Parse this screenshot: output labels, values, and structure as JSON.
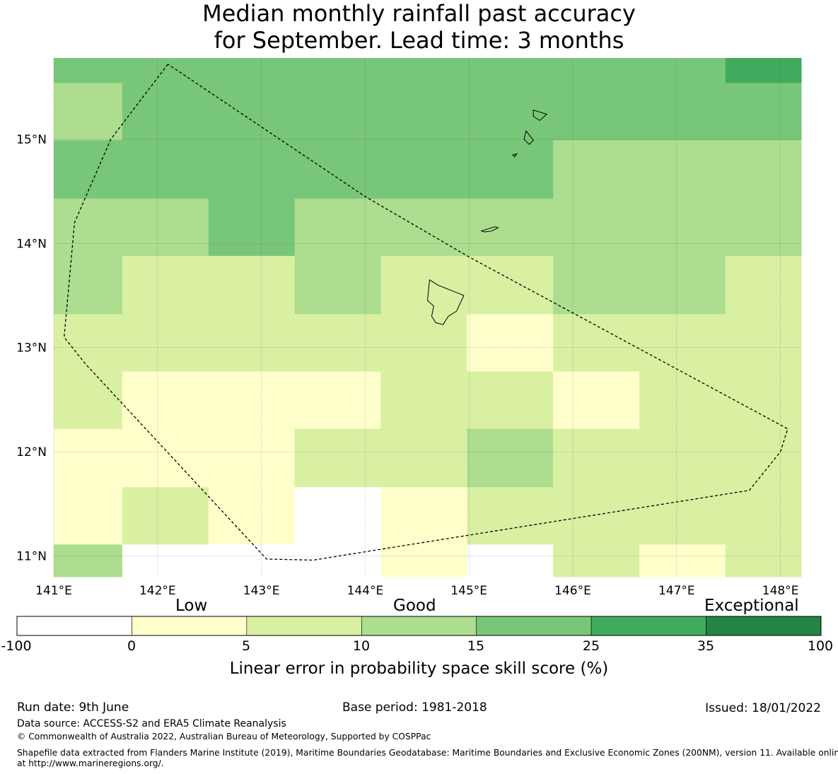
{
  "title": {
    "line1": "Median monthly rainfall past accuracy",
    "line2": "for September. Lead time: 3 months"
  },
  "map": {
    "lon_range": [
      141.0,
      148.2
    ],
    "lat_range": [
      10.8,
      15.78
    ],
    "x_ticks": [
      "141°E",
      "142°E",
      "143°E",
      "144°E",
      "145°E",
      "146°E",
      "147°E",
      "148°E"
    ],
    "x_tick_values": [
      141,
      142,
      143,
      144,
      145,
      146,
      147,
      148
    ],
    "y_ticks": [
      "15°N",
      "14°N",
      "13°N",
      "12°N",
      "11°N"
    ],
    "y_tick_values": [
      15,
      14,
      13,
      12,
      11
    ],
    "cell_lon_edges": [
      141.0,
      141.66,
      142.49,
      143.32,
      144.15,
      144.98,
      145.81,
      146.64,
      147.47,
      148.2
    ],
    "cell_lat_edges": [
      15.78,
      15.54,
      14.99,
      14.43,
      13.88,
      13.32,
      12.77,
      12.22,
      11.66,
      11.11,
      10.8
    ],
    "skill_classes": [
      [
        4,
        4,
        4,
        4,
        4,
        4,
        4,
        4,
        5
      ],
      [
        3,
        4,
        4,
        4,
        4,
        4,
        4,
        4,
        4
      ],
      [
        4,
        4,
        4,
        4,
        4,
        4,
        3,
        3,
        3
      ],
      [
        3,
        3,
        4,
        3,
        3,
        3,
        3,
        3,
        3
      ],
      [
        3,
        2,
        2,
        3,
        2,
        2,
        3,
        3,
        2
      ],
      [
        2,
        2,
        2,
        2,
        2,
        1,
        2,
        2,
        2
      ],
      [
        2,
        1,
        1,
        1,
        2,
        2,
        1,
        2,
        2
      ],
      [
        1,
        1,
        1,
        2,
        2,
        3,
        2,
        2,
        2
      ],
      [
        1,
        2,
        1,
        0,
        1,
        2,
        2,
        2,
        2
      ],
      [
        3,
        0,
        0,
        0,
        1,
        0,
        2,
        1,
        2
      ]
    ],
    "boundary_label": "dashed boundary",
    "boundary": [
      [
        142.1,
        15.72
      ],
      [
        141.55,
        15.0
      ],
      [
        141.2,
        14.2
      ],
      [
        141.1,
        13.1
      ],
      [
        141.3,
        12.85
      ],
      [
        143.05,
        10.97
      ],
      [
        143.5,
        10.96
      ],
      [
        145.5,
        11.28
      ],
      [
        147.7,
        11.63
      ],
      [
        148.0,
        12.0
      ],
      [
        148.07,
        12.22
      ],
      [
        145.0,
        13.87
      ],
      [
        144.0,
        14.45
      ],
      [
        142.1,
        15.72
      ]
    ],
    "islands": [
      [
        [
          144.62,
          13.65
        ],
        [
          144.7,
          13.6
        ],
        [
          144.95,
          13.5
        ],
        [
          144.88,
          13.35
        ],
        [
          144.8,
          13.3
        ],
        [
          144.75,
          13.22
        ],
        [
          144.68,
          13.24
        ],
        [
          144.64,
          13.3
        ],
        [
          144.66,
          13.4
        ],
        [
          144.6,
          13.45
        ],
        [
          144.62,
          13.65
        ]
      ],
      [
        [
          145.12,
          14.12
        ],
        [
          145.25,
          14.16
        ],
        [
          145.28,
          14.15
        ],
        [
          145.22,
          14.12
        ],
        [
          145.15,
          14.11
        ],
        [
          145.12,
          14.12
        ]
      ],
      [
        [
          145.62,
          15.28
        ],
        [
          145.75,
          15.24
        ],
        [
          145.68,
          15.18
        ],
        [
          145.62,
          15.22
        ],
        [
          145.62,
          15.28
        ]
      ],
      [
        [
          145.55,
          15.08
        ],
        [
          145.62,
          14.99
        ],
        [
          145.58,
          14.95
        ],
        [
          145.53,
          15.0
        ],
        [
          145.55,
          15.08
        ]
      ],
      [
        [
          145.42,
          14.85
        ],
        [
          145.46,
          14.86
        ],
        [
          145.44,
          14.83
        ],
        [
          145.42,
          14.85
        ]
      ]
    ]
  },
  "colorbar": {
    "category_low": "Low",
    "category_good": "Good",
    "category_exceptional": "Exceptional",
    "boundaries": [
      "-100",
      "0",
      "5",
      "10",
      "15",
      "25",
      "35",
      "100"
    ],
    "colors": [
      "#ffffff",
      "#ffffcc",
      "#d9f0a3",
      "#addd8e",
      "#78c679",
      "#41ab5d",
      "#238443"
    ],
    "caption": "Linear error in probability space skill score (%)"
  },
  "footer": {
    "run_date": "Run date: 9th June",
    "base_period": "Base period: 1981-2018",
    "issued": "Issued: 18/01/2022",
    "data_source": "Data source: ACCESS-S2 and ERA5 Climate Reanalysis",
    "copyright": "© Commonwealth of Australia 2022, Australian Bureau of Meteorology, Supported by COSPPac",
    "shapefile_line1": "Shapefile data extracted from Flanders Marine Institute (2019), Maritime Boundaries Geodatabase: Maritime Boundaries and Exclusive Economic Zones (200NM), version 11. Available online",
    "shapefile_line2": "at http://www.marineregions.org/."
  }
}
